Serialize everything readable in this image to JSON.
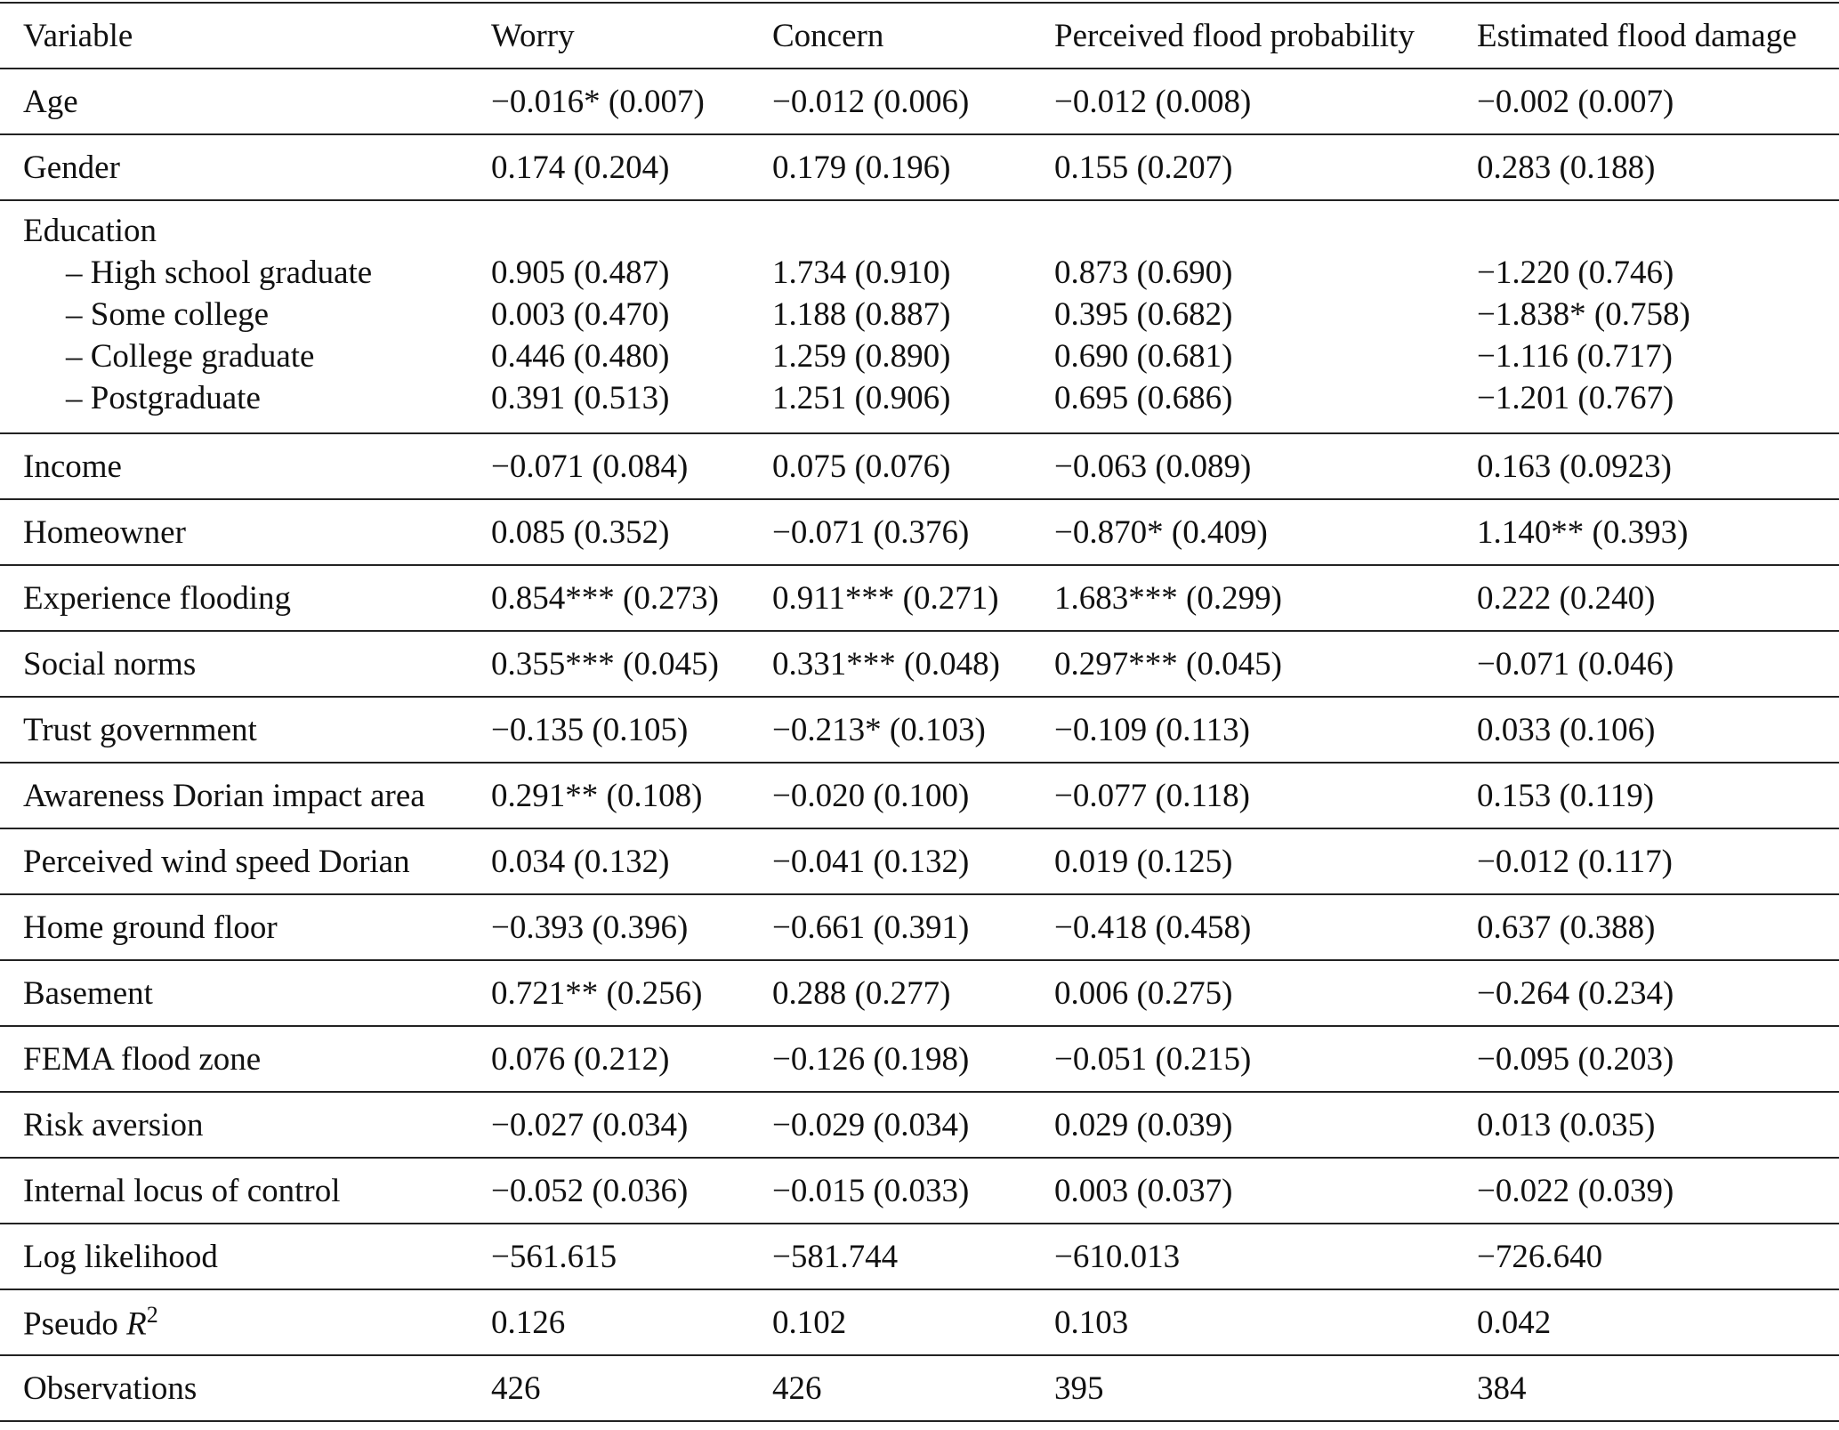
{
  "table": {
    "header": [
      "Variable",
      "Worry",
      "Concern",
      "Perceived flood probability",
      "Estimated flood damage"
    ],
    "rows": [
      {
        "cells": [
          "Age",
          "−0.016* (0.007)",
          "−0.012 (0.006)",
          "−0.012 (0.008)",
          "−0.002 (0.007)"
        ]
      },
      {
        "cells": [
          "Gender",
          "0.174 (0.204)",
          "0.179 (0.196)",
          "0.155 (0.207)",
          "0.283 (0.188)"
        ]
      },
      {
        "label": "Education",
        "subrows": [
          [
            "– High school graduate",
            "0.905 (0.487)",
            "1.734 (0.910)",
            "0.873 (0.690)",
            "−1.220 (0.746)"
          ],
          [
            "– Some college",
            "0.003 (0.470)",
            "1.188 (0.887)",
            "0.395 (0.682)",
            "−1.838* (0.758)"
          ],
          [
            "– College graduate",
            "0.446 (0.480)",
            "1.259 (0.890)",
            "0.690 (0.681)",
            "−1.116 (0.717)"
          ],
          [
            "– Postgraduate",
            "0.391 (0.513)",
            "1.251 (0.906)",
            "0.695 (0.686)",
            "−1.201 (0.767)"
          ]
        ]
      },
      {
        "cells": [
          "Income",
          "−0.071 (0.084)",
          "0.075 (0.076)",
          "−0.063 (0.089)",
          "0.163 (0.0923)"
        ]
      },
      {
        "cells": [
          "Homeowner",
          "0.085 (0.352)",
          "−0.071 (0.376)",
          "−0.870* (0.409)",
          "1.140** (0.393)"
        ]
      },
      {
        "cells": [
          "Experience flooding",
          "0.854*** (0.273)",
          "0.911*** (0.271)",
          "1.683*** (0.299)",
          "0.222 (0.240)"
        ]
      },
      {
        "cells": [
          "Social norms",
          "0.355*** (0.045)",
          "0.331*** (0.048)",
          "0.297*** (0.045)",
          "−0.071 (0.046)"
        ]
      },
      {
        "cells": [
          "Trust government",
          "−0.135 (0.105)",
          "−0.213* (0.103)",
          "−0.109 (0.113)",
          "0.033 (0.106)"
        ]
      },
      {
        "cells": [
          "Awareness Dorian impact area",
          "0.291** (0.108)",
          "−0.020 (0.100)",
          "−0.077 (0.118)",
          "0.153 (0.119)"
        ]
      },
      {
        "cells": [
          "Perceived wind speed Dorian",
          "0.034 (0.132)",
          "−0.041 (0.132)",
          "0.019 (0.125)",
          "−0.012 (0.117)"
        ]
      },
      {
        "cells": [
          "Home ground floor",
          "−0.393 (0.396)",
          "−0.661 (0.391)",
          "−0.418 (0.458)",
          "0.637 (0.388)"
        ]
      },
      {
        "cells": [
          "Basement",
          "0.721** (0.256)",
          "0.288 (0.277)",
          "0.006 (0.275)",
          "−0.264 (0.234)"
        ]
      },
      {
        "cells": [
          "FEMA flood zone",
          "0.076 (0.212)",
          "−0.126 (0.198)",
          "−0.051 (0.215)",
          "−0.095 (0.203)"
        ]
      },
      {
        "cells": [
          "Risk aversion",
          "−0.027 (0.034)",
          "−0.029 (0.034)",
          "0.029 (0.039)",
          "0.013 (0.035)"
        ]
      },
      {
        "cells": [
          "Internal locus of control",
          "−0.052 (0.036)",
          "−0.015 (0.033)",
          "0.003 (0.037)",
          "−0.022 (0.039)"
        ]
      },
      {
        "cells": [
          "Log likelihood",
          "−561.615",
          "−581.744",
          "−610.013",
          "−726.640"
        ]
      },
      {
        "cells": [
          {
            "text": "Pseudo ",
            "var": "R",
            "sup": "2"
          },
          "0.126",
          "0.102",
          "0.103",
          "0.042"
        ]
      },
      {
        "cells": [
          "Observations",
          "426",
          "426",
          "395",
          "384"
        ]
      }
    ]
  }
}
